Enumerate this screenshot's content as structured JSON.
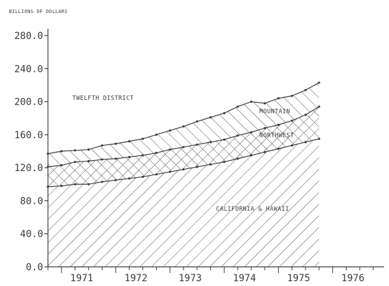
{
  "chart_data": {
    "type": "area",
    "title": "",
    "units_label": "BILLIONS OF DOLLARS",
    "ylabel": "",
    "xlabel": "",
    "ylim": [
      0,
      280
    ],
    "xlim": [
      1970.75,
      1976.85
    ],
    "y_ticks": [
      "280.0",
      "240.0",
      "200.0",
      "160.0",
      "120.0",
      "80.0",
      "40.0",
      "0.0"
    ],
    "x_ticks": [
      "1971",
      "1972",
      "1973",
      "1974",
      "1975",
      "1976"
    ],
    "grid": false,
    "stacked": true,
    "x": [
      1970.75,
      1971.0,
      1971.25,
      1971.5,
      1971.75,
      1972.0,
      1972.25,
      1972.5,
      1972.75,
      1973.0,
      1973.25,
      1973.5,
      1973.75,
      1974.0,
      1974.25,
      1974.5,
      1974.75,
      1975.0,
      1975.25,
      1975.5,
      1975.75
    ],
    "series": [
      {
        "name": "CALIFORNIA & HAWAII",
        "values": [
          97,
          98,
          100,
          100,
          103,
          105,
          107,
          109,
          112,
          115,
          118,
          121,
          124,
          127,
          131,
          135,
          139,
          143,
          147,
          151,
          155
        ],
        "hatch": "diagonal-down"
      },
      {
        "name": "NORTHWEST",
        "values": [
          24,
          25,
          27,
          28,
          27,
          26,
          26,
          26,
          26,
          27,
          27,
          27,
          27,
          27,
          28,
          28,
          29,
          29,
          30,
          33,
          39
        ],
        "hatch": "crosshatch"
      },
      {
        "name": "MOUNTAIN",
        "values": [
          16,
          17,
          14,
          14,
          17,
          18,
          19,
          20,
          22,
          23,
          25,
          28,
          30,
          32,
          35,
          37,
          30,
          32,
          30,
          30,
          29
        ],
        "hatch": "diagonal-up"
      }
    ],
    "annotations": [
      {
        "text": "TWELFTH DISTRICT",
        "x": 1971.2,
        "y": 202
      },
      {
        "text": "MOUNTAIN",
        "x": 1974.65,
        "y": 186
      },
      {
        "text": "NORTHWEST",
        "x": 1974.65,
        "y": 157
      },
      {
        "text": "CALIFORNIA & HAWAII",
        "x": 1973.85,
        "y": 68
      }
    ]
  }
}
